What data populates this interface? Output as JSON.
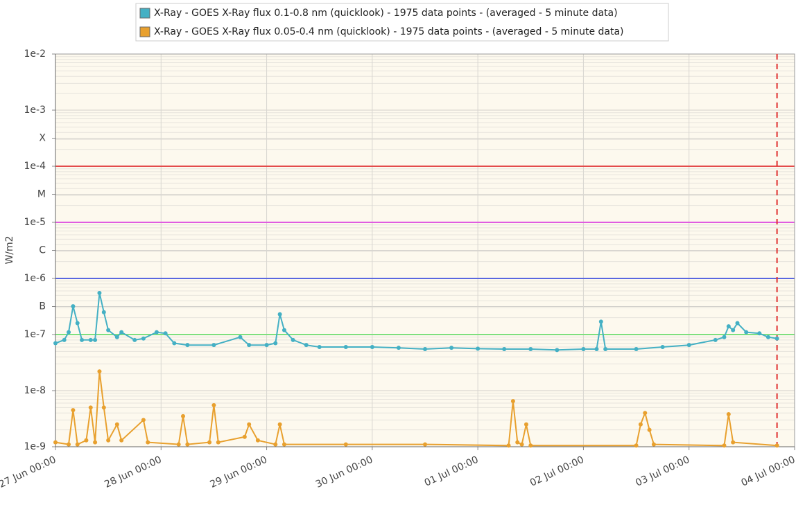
{
  "chart_data": {
    "type": "line",
    "y_label": "W/m2",
    "log_scale": true,
    "grid": true,
    "ylim": [
      1e-09,
      0.01
    ],
    "yticks": [
      {
        "value": 0.01,
        "label": "1e-2"
      },
      {
        "value": 0.001,
        "label": "1e-3"
      },
      {
        "value": 0.000316,
        "label": "X"
      },
      {
        "value": 0.0001,
        "label": "1e-4"
      },
      {
        "value": 3.16e-05,
        "label": "M"
      },
      {
        "value": 1e-05,
        "label": "1e-5"
      },
      {
        "value": 3.16e-06,
        "label": "C"
      },
      {
        "value": 1e-06,
        "label": "1e-6"
      },
      {
        "value": 3.16e-07,
        "label": "B"
      },
      {
        "value": 1e-07,
        "label": "1e-7"
      },
      {
        "value": 1e-08,
        "label": "1e-8"
      },
      {
        "value": 1e-09,
        "label": "1e-9"
      }
    ],
    "xlim": [
      "27 Jun 00:00",
      "04 Jul 00:00"
    ],
    "xticks": [
      "27 Jun 00:00",
      "28 Jun 00:00",
      "29 Jun 00:00",
      "30 Jun 00:00",
      "01 Jul 00:00",
      "02 Jul 00:00",
      "03 Jul 00:00",
      "04 Jul 00:00"
    ],
    "thresholds": [
      {
        "value": 0.0001,
        "color": "#e34b4b"
      },
      {
        "value": 1e-05,
        "color": "#e05ce0"
      },
      {
        "value": 1e-06,
        "color": "#5a68e0"
      },
      {
        "value": 1e-07,
        "color": "#7ee07e"
      }
    ],
    "now_marker": {
      "x": "03 Jul 20:00",
      "color": "#e03030"
    },
    "series": [
      {
        "name": "X-Ray - GOES X-Ray flux 0.1-0.8 nm (quicklook) - 1975 data points - (averaged - 5 minute data)",
        "color": "#44b0c4",
        "x": [
          "27 Jun 00:00",
          "27 Jun 02:00",
          "27 Jun 03:00",
          "27 Jun 04:00",
          "27 Jun 05:00",
          "27 Jun 06:00",
          "27 Jun 08:00",
          "27 Jun 09:00",
          "27 Jun 10:00",
          "27 Jun 11:00",
          "27 Jun 12:00",
          "27 Jun 14:00",
          "27 Jun 15:00",
          "27 Jun 18:00",
          "27 Jun 20:00",
          "27 Jun 23:00",
          "28 Jun 01:00",
          "28 Jun 03:00",
          "28 Jun 06:00",
          "28 Jun 12:00",
          "28 Jun 18:00",
          "28 Jun 20:00",
          "29 Jun 00:00",
          "29 Jun 02:00",
          "29 Jun 03:00",
          "29 Jun 04:00",
          "29 Jun 06:00",
          "29 Jun 09:00",
          "29 Jun 12:00",
          "29 Jun 18:00",
          "30 Jun 00:00",
          "30 Jun 06:00",
          "30 Jun 12:00",
          "30 Jun 18:00",
          "01 Jul 00:00",
          "01 Jul 06:00",
          "01 Jul 12:00",
          "01 Jul 18:00",
          "02 Jul 00:00",
          "02 Jul 03:00",
          "02 Jul 04:00",
          "02 Jul 05:00",
          "02 Jul 12:00",
          "02 Jul 18:00",
          "03 Jul 00:00",
          "03 Jul 06:00",
          "03 Jul 08:00",
          "03 Jul 09:00",
          "03 Jul 10:00",
          "03 Jul 11:00",
          "03 Jul 13:00",
          "03 Jul 16:00",
          "03 Jul 18:00",
          "03 Jul 20:00"
        ],
        "values": [
          7e-08,
          8e-08,
          1.1e-07,
          3.2e-07,
          1.6e-07,
          8e-08,
          8e-08,
          8e-08,
          5.5e-07,
          2.5e-07,
          1.2e-07,
          9e-08,
          1.1e-07,
          8e-08,
          8.5e-08,
          1.1e-07,
          1.05e-07,
          7e-08,
          6.5e-08,
          6.5e-08,
          9e-08,
          6.5e-08,
          6.5e-08,
          7e-08,
          2.3e-07,
          1.2e-07,
          8e-08,
          6.5e-08,
          6e-08,
          6e-08,
          6e-08,
          5.8e-08,
          5.5e-08,
          5.8e-08,
          5.6e-08,
          5.5e-08,
          5.5e-08,
          5.3e-08,
          5.5e-08,
          5.5e-08,
          1.7e-07,
          5.5e-08,
          5.5e-08,
          6e-08,
          6.5e-08,
          8e-08,
          9e-08,
          1.4e-07,
          1.2e-07,
          1.6e-07,
          1.1e-07,
          1.05e-07,
          9e-08,
          8.5e-08
        ]
      },
      {
        "name": "X-Ray - GOES X-Ray flux 0.05-0.4 nm (quicklook) - 1975 data points - (averaged - 5 minute data)",
        "color": "#e8a02e",
        "x": [
          "27 Jun 00:00",
          "27 Jun 03:00",
          "27 Jun 04:00",
          "27 Jun 05:00",
          "27 Jun 07:00",
          "27 Jun 08:00",
          "27 Jun 09:00",
          "27 Jun 10:00",
          "27 Jun 11:00",
          "27 Jun 12:00",
          "27 Jun 14:00",
          "27 Jun 15:00",
          "27 Jun 20:00",
          "27 Jun 21:00",
          "28 Jun 04:00",
          "28 Jun 05:00",
          "28 Jun 06:00",
          "28 Jun 11:00",
          "28 Jun 12:00",
          "28 Jun 13:00",
          "28 Jun 19:00",
          "28 Jun 20:00",
          "28 Jun 22:00",
          "29 Jun 02:00",
          "29 Jun 03:00",
          "29 Jun 04:00",
          "29 Jun 18:00",
          "30 Jun 12:00",
          "01 Jul 07:00",
          "01 Jul 08:00",
          "01 Jul 09:00",
          "01 Jul 10:00",
          "01 Jul 11:00",
          "01 Jul 12:00",
          "02 Jul 12:00",
          "02 Jul 13:00",
          "02 Jul 14:00",
          "02 Jul 15:00",
          "02 Jul 16:00",
          "03 Jul 08:00",
          "03 Jul 09:00",
          "03 Jul 10:00",
          "03 Jul 20:00"
        ],
        "values": [
          1.2e-09,
          1.1e-09,
          4.5e-09,
          1.1e-09,
          1.3e-09,
          5e-09,
          1.2e-09,
          2.2e-08,
          5e-09,
          1.3e-09,
          2.5e-09,
          1.3e-09,
          3e-09,
          1.2e-09,
          1.1e-09,
          3.5e-09,
          1.1e-09,
          1.2e-09,
          5.5e-09,
          1.2e-09,
          1.5e-09,
          2.5e-09,
          1.3e-09,
          1.1e-09,
          2.5e-09,
          1.1e-09,
          1.1e-09,
          1.1e-09,
          1.05e-09,
          6.5e-09,
          1.2e-09,
          1.1e-09,
          2.5e-09,
          1.05e-09,
          1.05e-09,
          2.5e-09,
          4e-09,
          2e-09,
          1.1e-09,
          1.05e-09,
          3.8e-09,
          1.2e-09,
          1.05e-09
        ]
      }
    ]
  }
}
